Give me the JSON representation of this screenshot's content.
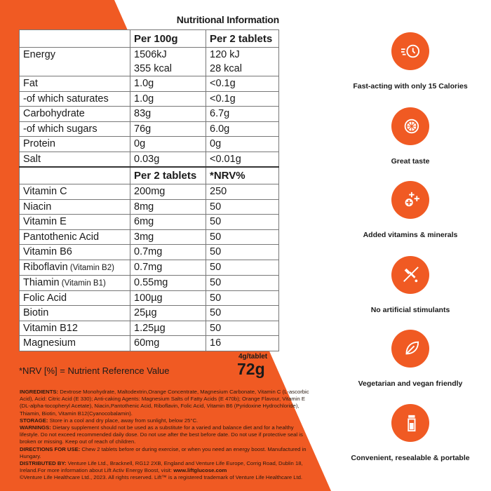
{
  "title": "Nutritional Information",
  "colors": {
    "brand": "#f05a23"
  },
  "table1": {
    "headers": [
      "",
      "Per 100g",
      "Per 2 tablets"
    ],
    "rows": [
      [
        "Energy",
        "1506kJ\n355 kcal",
        "120 kJ\n28 kcal"
      ],
      [
        "Fat",
        "1.0g",
        "<0.1g"
      ],
      [
        "-of which saturates",
        "1.0g",
        "<0.1g"
      ],
      [
        "Carbohydrate",
        "83g",
        "6.7g"
      ],
      [
        "-of which sugars",
        "76g",
        "6.0g"
      ],
      [
        "Protein",
        "0g",
        "0g"
      ],
      [
        "Salt",
        "0.03g",
        "<0.01g"
      ]
    ]
  },
  "table2": {
    "headers": [
      "",
      "Per 2 tablets",
      "*NRV%"
    ],
    "rows": [
      [
        "Vitamin C",
        "",
        "200mg",
        "250"
      ],
      [
        "Niacin",
        "",
        "8mg",
        "50"
      ],
      [
        "Vitamin E",
        "",
        "6mg",
        "50"
      ],
      [
        "Pantothenic Acid",
        "",
        "3mg",
        "50"
      ],
      [
        "Vitamin B6",
        "",
        "0.7mg",
        "50"
      ],
      [
        "Riboflavin",
        "(Vitamin B2)",
        "0.7mg",
        "50"
      ],
      [
        "Thiamin",
        "(Vitamin B1)",
        "0.55mg",
        "50"
      ],
      [
        "Folic Acid",
        "",
        "100µg",
        "50"
      ],
      [
        "Biotin",
        "",
        "25µg",
        "50"
      ],
      [
        "Vitamin B12",
        "",
        "1.25µg",
        "50"
      ],
      [
        "Magnesium",
        "",
        "60mg",
        "16"
      ]
    ]
  },
  "nrv_note": "*NRV [%] = Nutrient Reference Value",
  "per_tablet": "4g/tablet",
  "net_weight": "72g",
  "info": [
    {
      "label": "INGREDIENTS:",
      "text": " Dextrose Monohydrate, Maltodextrin,Orange Concentrate, Magnesium Carbonate, Vitamin C (L-ascorbic Acid), Acid: Citric Acid (E 330); Anti-caking Agents: Magnesium Salts of Fatty Acids (E 470b); Orange Flavour, Vitamin E (DL-alpha-tocopheryl Acetate), Niacin,Pantothenic Acid, Riboflavin, Folic Acid, Vitamin B6 (Pyridoxine Hydrochloride), Thiamin, Biotin, Vitamin B12(Cyanocobalamin)."
    },
    {
      "label": "STORAGE:",
      "text": " Store in a cool and dry place, away from sunlight, below 25°C."
    },
    {
      "label": "WARNINGS:",
      "text": " Dietary supplement should not be used as a substitute for a varied and balance diet and for a healthy lifestyle. Do not exceed recommended daily dose. Do not use after the best before date. Do not use if protective seal is broken or missing. Keep out of reach of children."
    },
    {
      "label": "DIRECTIONS FOR USE:",
      "text": " Chew 2 tablets before or during exercise, or when you need an energy boost. Manufactured in Hungary."
    },
    {
      "label": "DISTRIBUTED BY:",
      "text": " Venture Life Ltd., Bracknell, RG12 2XB, England and Venture Life Europe, Corrig Road, Dublin 18, Ireland.For more information about Lift Activ Energy Boost, visit: ",
      "link": "www.liftglucose.com"
    }
  ],
  "copyright": "©Venture Life Healthcare Ltd., 2023. All rights reserved. Lift™ is a registered trademark of Venture Life Healthcare Ltd.",
  "features": [
    {
      "icon": "fast-clock-icon",
      "label": "Fast-acting with only 15 Calories"
    },
    {
      "icon": "orange-slice-icon",
      "label": "Great taste"
    },
    {
      "icon": "plus-icon",
      "label": "Added vitamins & minerals"
    },
    {
      "icon": "no-dropper-icon",
      "label": "No artificial stimulants"
    },
    {
      "icon": "leaf-icon",
      "label": "Vegetarian  and vegan friendly"
    },
    {
      "icon": "tube-icon",
      "label": "Convenient,  resealable & portable"
    }
  ]
}
